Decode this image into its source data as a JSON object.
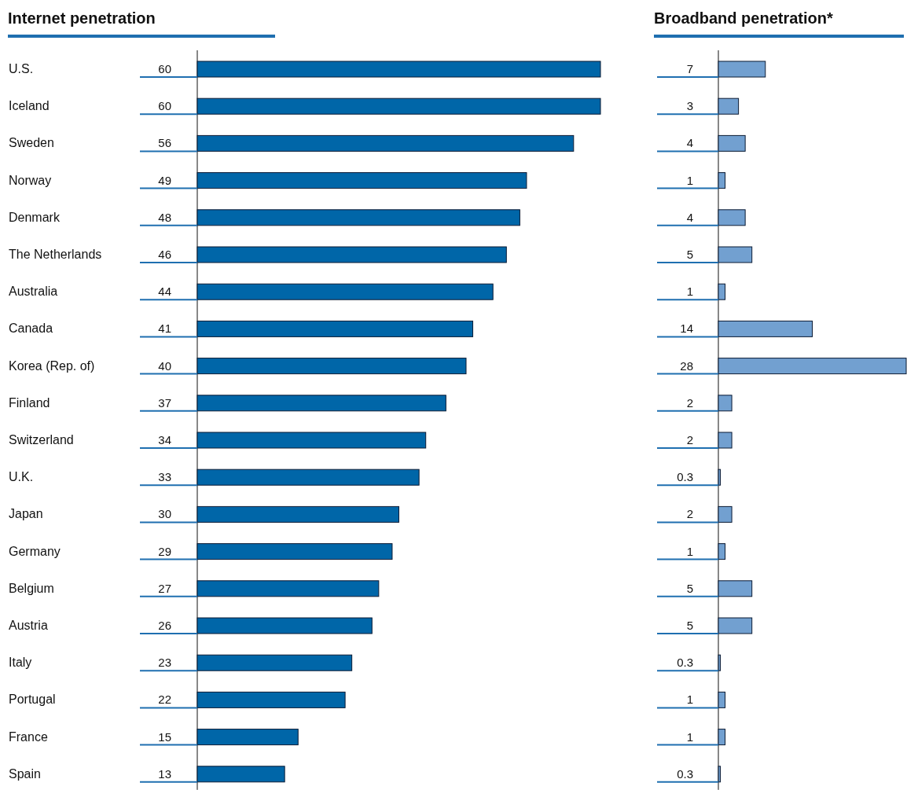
{
  "chart_data": [
    {
      "type": "bar",
      "orientation": "horizontal",
      "title": "Internet penetration",
      "categories": [
        "U.S.",
        "Iceland",
        "Sweden",
        "Norway",
        "Denmark",
        "The Netherlands",
        "Australia",
        "Canada",
        "Korea (Rep. of)",
        "Finland",
        "Switzerland",
        "U.K.",
        "Japan",
        "Germany",
        "Belgium",
        "Austria",
        "Italy",
        "Portugal",
        "France",
        "Spain"
      ],
      "values": [
        60,
        60,
        56,
        49,
        48,
        46,
        44,
        41,
        40,
        37,
        34,
        33,
        30,
        29,
        27,
        26,
        23,
        22,
        15,
        13
      ],
      "color": "#0066a8",
      "data_labels": true
    },
    {
      "type": "bar",
      "orientation": "horizontal",
      "title": "Broadband penetration*",
      "categories": [
        null,
        null,
        null,
        null,
        null,
        null,
        null,
        null,
        null,
        null,
        null,
        null,
        null,
        null,
        null,
        null,
        null,
        null,
        null,
        null
      ],
      "values": [
        7,
        3,
        4,
        1,
        4,
        5,
        1,
        14,
        28,
        2,
        2,
        0.3,
        2,
        1,
        5,
        5,
        0.3,
        1,
        1,
        0.3
      ],
      "color": "#72a0d0",
      "data_labels": true
    }
  ]
}
